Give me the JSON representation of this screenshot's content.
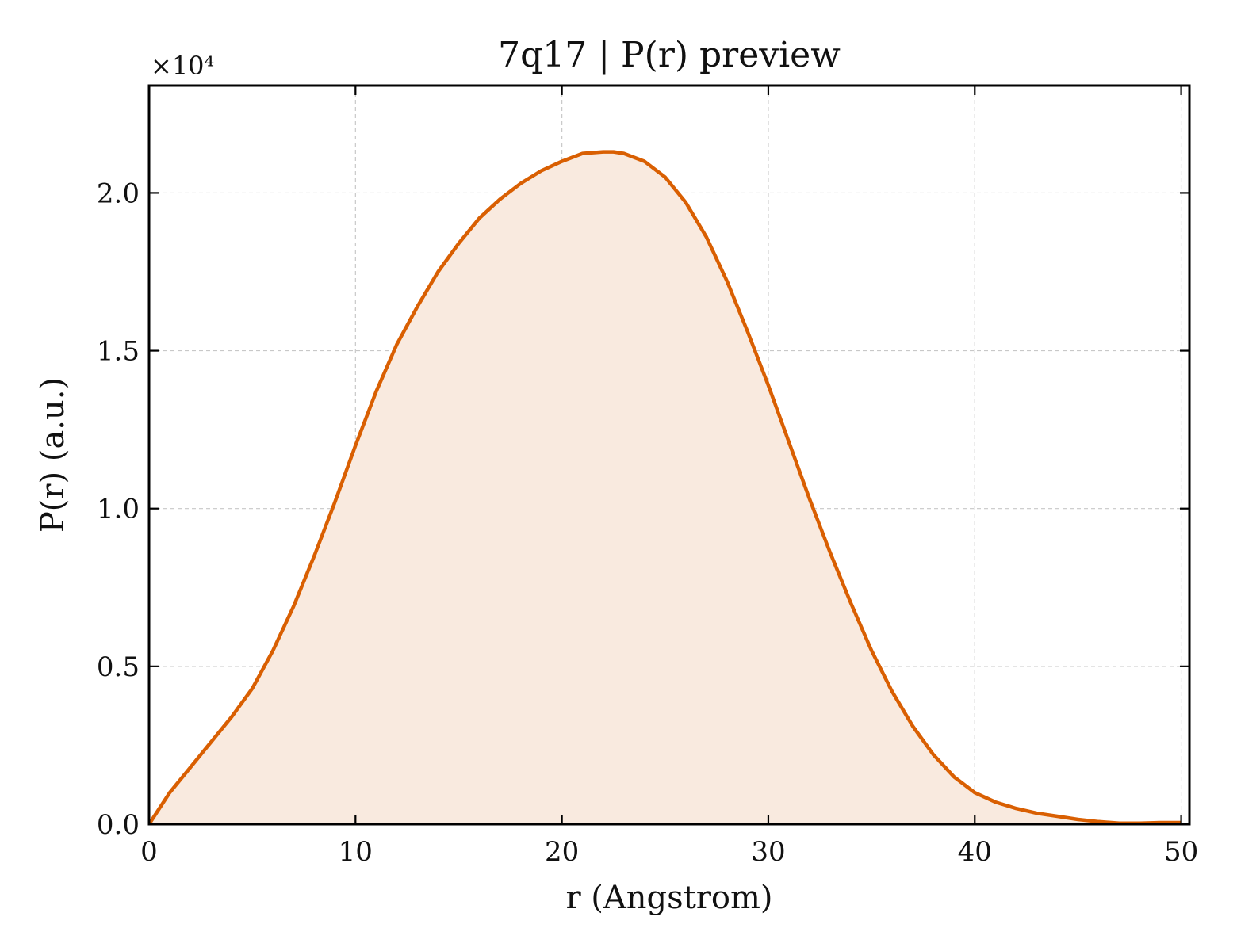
{
  "chart_data": {
    "type": "area",
    "title": "7q17 | P(r) preview",
    "xlabel": "r (Angstrom)",
    "ylabel": "P(r) (a.u.)",
    "y_scale_label": "×10⁴",
    "xlim": [
      0,
      50.4
    ],
    "ylim": [
      0,
      2.34
    ],
    "x_ticks": [
      0,
      10,
      20,
      30,
      40,
      50
    ],
    "x_tick_labels": [
      "0",
      "10",
      "20",
      "30",
      "40",
      "50"
    ],
    "y_ticks": [
      0,
      0.5,
      1.0,
      1.5,
      2.0
    ],
    "y_tick_labels": [
      "0.0",
      "0.5",
      "1.0",
      "1.5",
      "2.0"
    ],
    "grid": true,
    "line_color": "#d95f02",
    "fill_color": "#f9eadf",
    "series": [
      {
        "x": [
          0,
          1,
          2,
          3,
          4,
          5,
          6,
          7,
          8,
          9,
          10,
          11,
          12,
          13,
          14,
          15,
          16,
          17,
          18,
          19,
          20,
          21,
          22,
          22.5,
          23,
          24,
          25,
          26,
          27,
          28,
          29,
          30,
          31,
          32,
          33,
          34,
          35,
          36,
          37,
          38,
          39,
          40,
          41,
          42,
          43,
          44,
          45,
          46,
          47,
          48,
          49,
          50
        ],
        "y": [
          0,
          0.1,
          0.18,
          0.26,
          0.34,
          0.43,
          0.55,
          0.69,
          0.85,
          1.02,
          1.2,
          1.37,
          1.52,
          1.64,
          1.75,
          1.84,
          1.92,
          1.98,
          2.03,
          2.07,
          2.1,
          2.125,
          2.13,
          2.13,
          2.125,
          2.1,
          2.05,
          1.97,
          1.86,
          1.72,
          1.56,
          1.39,
          1.21,
          1.03,
          0.86,
          0.7,
          0.55,
          0.42,
          0.31,
          0.22,
          0.15,
          0.1,
          0.07,
          0.05,
          0.035,
          0.025,
          0.015,
          0.008,
          0.003,
          0.003,
          0.005,
          0.005
        ]
      }
    ]
  }
}
